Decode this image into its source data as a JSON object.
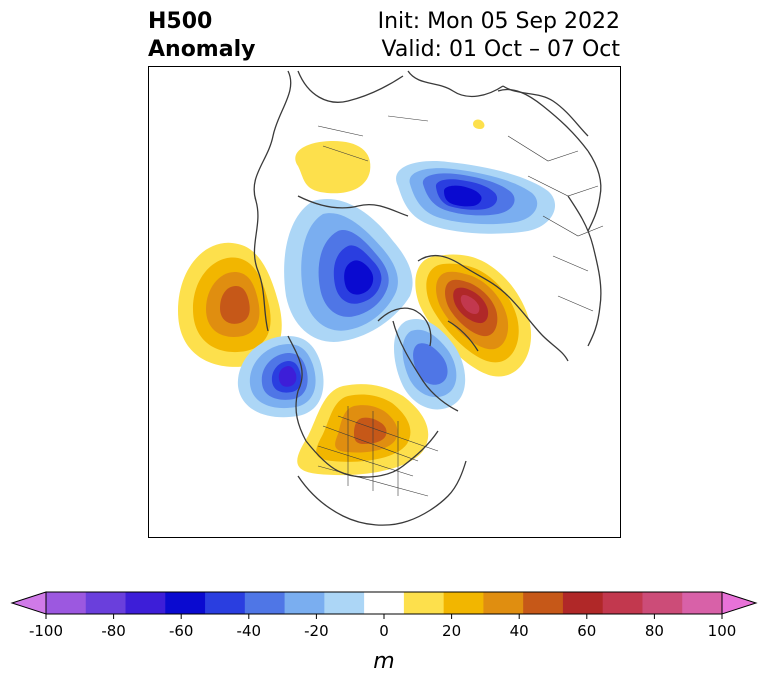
{
  "header": {
    "variable": "H500",
    "field": "Anomaly",
    "init": "Init: Mon 05 Sep 2022",
    "valid": "Valid: 01 Oct – 07 Oct"
  },
  "colorbar": {
    "unit": "m",
    "ticks": [
      "-100",
      "-80",
      "-60",
      "-40",
      "-20",
      "0",
      "20",
      "40",
      "60",
      "80",
      "100"
    ],
    "colors": [
      "#d07ae8",
      "#9c58e0",
      "#6a3fdc",
      "#3d1ed8",
      "#0a0ad0",
      "#2a3ee0",
      "#4f76e6",
      "#7aaef0",
      "#acd6f6",
      "#ffffff",
      "#fde04c",
      "#f2b600",
      "#e08e10",
      "#c65818",
      "#b02828",
      "#c2384e",
      "#cc4c78",
      "#d861a8",
      "#e872d8"
    ]
  },
  "map": {
    "land_color": "#fdfdf8",
    "coast_color": "#3a3a3a",
    "anomalies": [
      {
        "name": "pacific-ridge",
        "value": 40
      },
      {
        "name": "alaska-trough",
        "value": -60
      },
      {
        "name": "arctic-trough",
        "value": -60
      },
      {
        "name": "siberia-trough",
        "value": -60
      },
      {
        "name": "scandinavia-ridge",
        "value": 60
      },
      {
        "name": "canada-ridge",
        "value": 40
      },
      {
        "name": "greenland-trough",
        "value": -40
      },
      {
        "name": "asia-ridge",
        "value": 20
      },
      {
        "name": "siberia-small-ridge",
        "value": 20
      }
    ]
  }
}
